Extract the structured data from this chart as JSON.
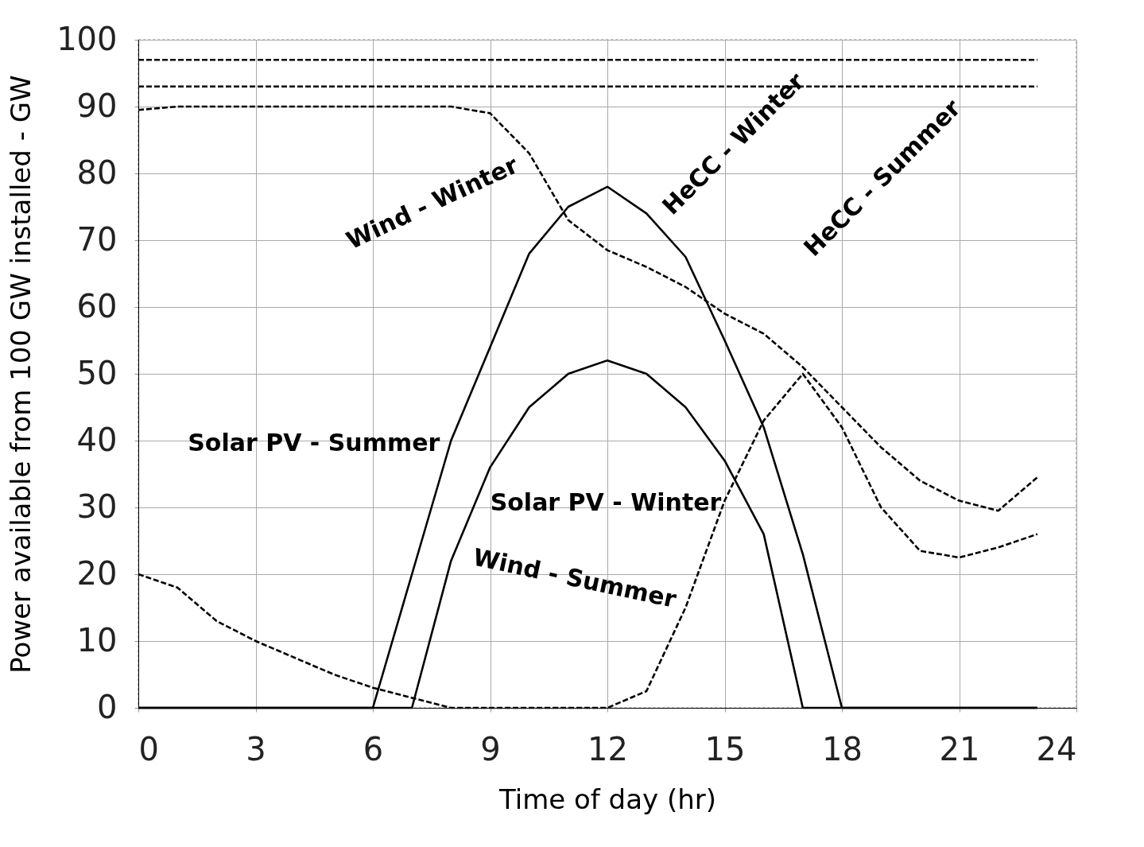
{
  "chart_data": {
    "type": "line",
    "xlabel": "Time of day (hr)",
    "ylabel": "Power available from 100 GW installed - GW",
    "x": [
      0,
      1,
      2,
      3,
      4,
      5,
      6,
      7,
      8,
      9,
      10,
      11,
      12,
      13,
      14,
      15,
      16,
      17,
      18,
      19,
      20,
      21,
      22,
      23
    ],
    "xlim": [
      0,
      24
    ],
    "xticks": [
      0,
      3,
      6,
      9,
      12,
      15,
      18,
      21,
      24
    ],
    "ylim": [
      0,
      100
    ],
    "yticks": [
      0,
      10,
      20,
      30,
      40,
      50,
      60,
      70,
      80,
      90,
      100
    ],
    "grid": true,
    "legend": false,
    "marker": "none",
    "series": [
      {
        "name": "Solar PV - Summer",
        "color": "#000000",
        "line_style": "solid",
        "values": [
          0,
          0,
          0,
          0,
          0,
          0,
          0,
          20,
          40,
          54,
          68,
          75,
          78,
          74,
          67.5,
          55,
          42,
          23,
          0,
          0,
          0,
          0,
          0,
          0
        ]
      },
      {
        "name": "Solar PV - Winter",
        "color": "#000000",
        "line_style": "solid",
        "values": [
          0,
          0,
          0,
          0,
          0,
          0,
          0,
          0,
          22,
          36,
          45,
          50,
          52,
          50,
          45,
          37,
          26,
          0,
          0,
          0,
          0,
          0,
          0,
          0
        ]
      },
      {
        "name": "Wind  - Winter",
        "color": "#000000",
        "line_style": "dashed",
        "values": [
          89.5,
          90,
          90,
          90,
          90,
          90,
          90,
          90,
          90,
          89,
          83,
          73,
          68.5,
          66,
          63,
          59,
          56,
          51,
          45,
          39,
          34,
          31,
          29.5,
          34.5
        ]
      },
      {
        "name": "Wind  - Summer",
        "color": "#000000",
        "line_style": "dashed",
        "values": [
          20,
          18,
          13,
          10,
          7.5,
          5,
          3,
          1.5,
          0,
          0,
          0,
          0,
          0,
          2.5,
          15,
          31,
          43,
          50,
          42,
          30,
          23.5,
          22.5,
          24,
          26
        ]
      },
      {
        "name": "HeCC - Winter",
        "color": "#000000",
        "line_style": "dashed",
        "values": [
          97,
          97,
          97,
          97,
          97,
          97,
          97,
          97,
          97,
          97,
          97,
          97,
          97,
          97,
          97,
          97,
          97,
          97,
          97,
          97,
          97,
          97,
          97,
          97
        ]
      },
      {
        "name": "HeCC - Summer",
        "color": "#000000",
        "line_style": "dashed",
        "values": [
          93,
          93,
          93,
          93,
          93,
          93,
          93,
          93,
          93,
          93,
          93,
          93,
          93,
          93,
          93,
          93,
          93,
          93,
          93,
          93,
          93,
          93,
          93,
          93
        ]
      }
    ]
  }
}
